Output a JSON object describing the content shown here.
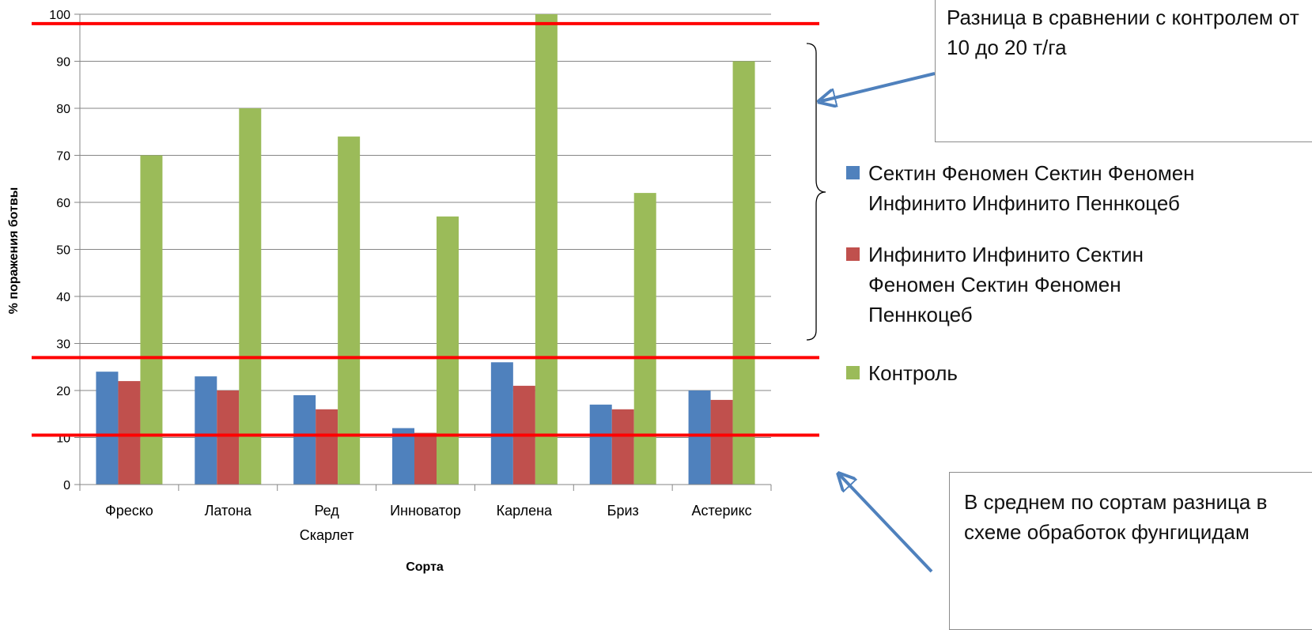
{
  "chart_data": {
    "type": "bar",
    "categories": [
      "Фреско",
      "Латона",
      "Ред Скарлет",
      "Инноватор",
      "Карлена",
      "Бриз",
      "Астерикс"
    ],
    "category_lines": [
      [
        "Фреско"
      ],
      [
        "Латона"
      ],
      [
        "Ред",
        "Скарлет"
      ],
      [
        "Инноватор"
      ],
      [
        "Карлена"
      ],
      [
        "Бриз"
      ],
      [
        "Астерикс"
      ]
    ],
    "series": [
      {
        "name": "Сектин Феномен Сектин Феномен Инфинито Инфинито Пеннкоцеб",
        "color": "#4f81bd",
        "values": [
          24,
          23,
          19,
          12,
          26,
          17,
          20
        ]
      },
      {
        "name": "Инфинито Инфинито Сектин Феномен Сектин Феномен Пеннкоцеб",
        "color": "#c0504d",
        "values": [
          22,
          20,
          16,
          11,
          21,
          16,
          18
        ]
      },
      {
        "name": "Контроль",
        "color": "#9bbb59",
        "values": [
          70,
          80,
          74,
          57,
          100,
          62,
          90
        ]
      }
    ],
    "xlabel": "Сорта",
    "ylabel": "% поражения ботвы",
    "ylim": [
      0,
      100
    ],
    "yticks": [
      0,
      10,
      20,
      30,
      40,
      50,
      60,
      70,
      80,
      90,
      100
    ],
    "grid": true,
    "legend_position": "right",
    "reference_lines": [
      {
        "y": 98,
        "color": "#ff0000"
      },
      {
        "y": 27,
        "color": "#ff0000"
      },
      {
        "y": 10.5,
        "color": "#ff0000"
      }
    ],
    "annotations": [
      "Разница в сравнении с контролем от 10 до 20 т/га",
      "В среднем по сортам разница в схеме обработок фунгицидам"
    ]
  },
  "callouts": {
    "top": "Разница в сравнении с контролем от 10 до  20 т/га",
    "bottom": "В среднем по сортам разница в схеме обработок фунгицидам"
  },
  "colors": {
    "arrow": "#4f81bd",
    "reference_line": "#ff0000",
    "grid": "#868686"
  }
}
